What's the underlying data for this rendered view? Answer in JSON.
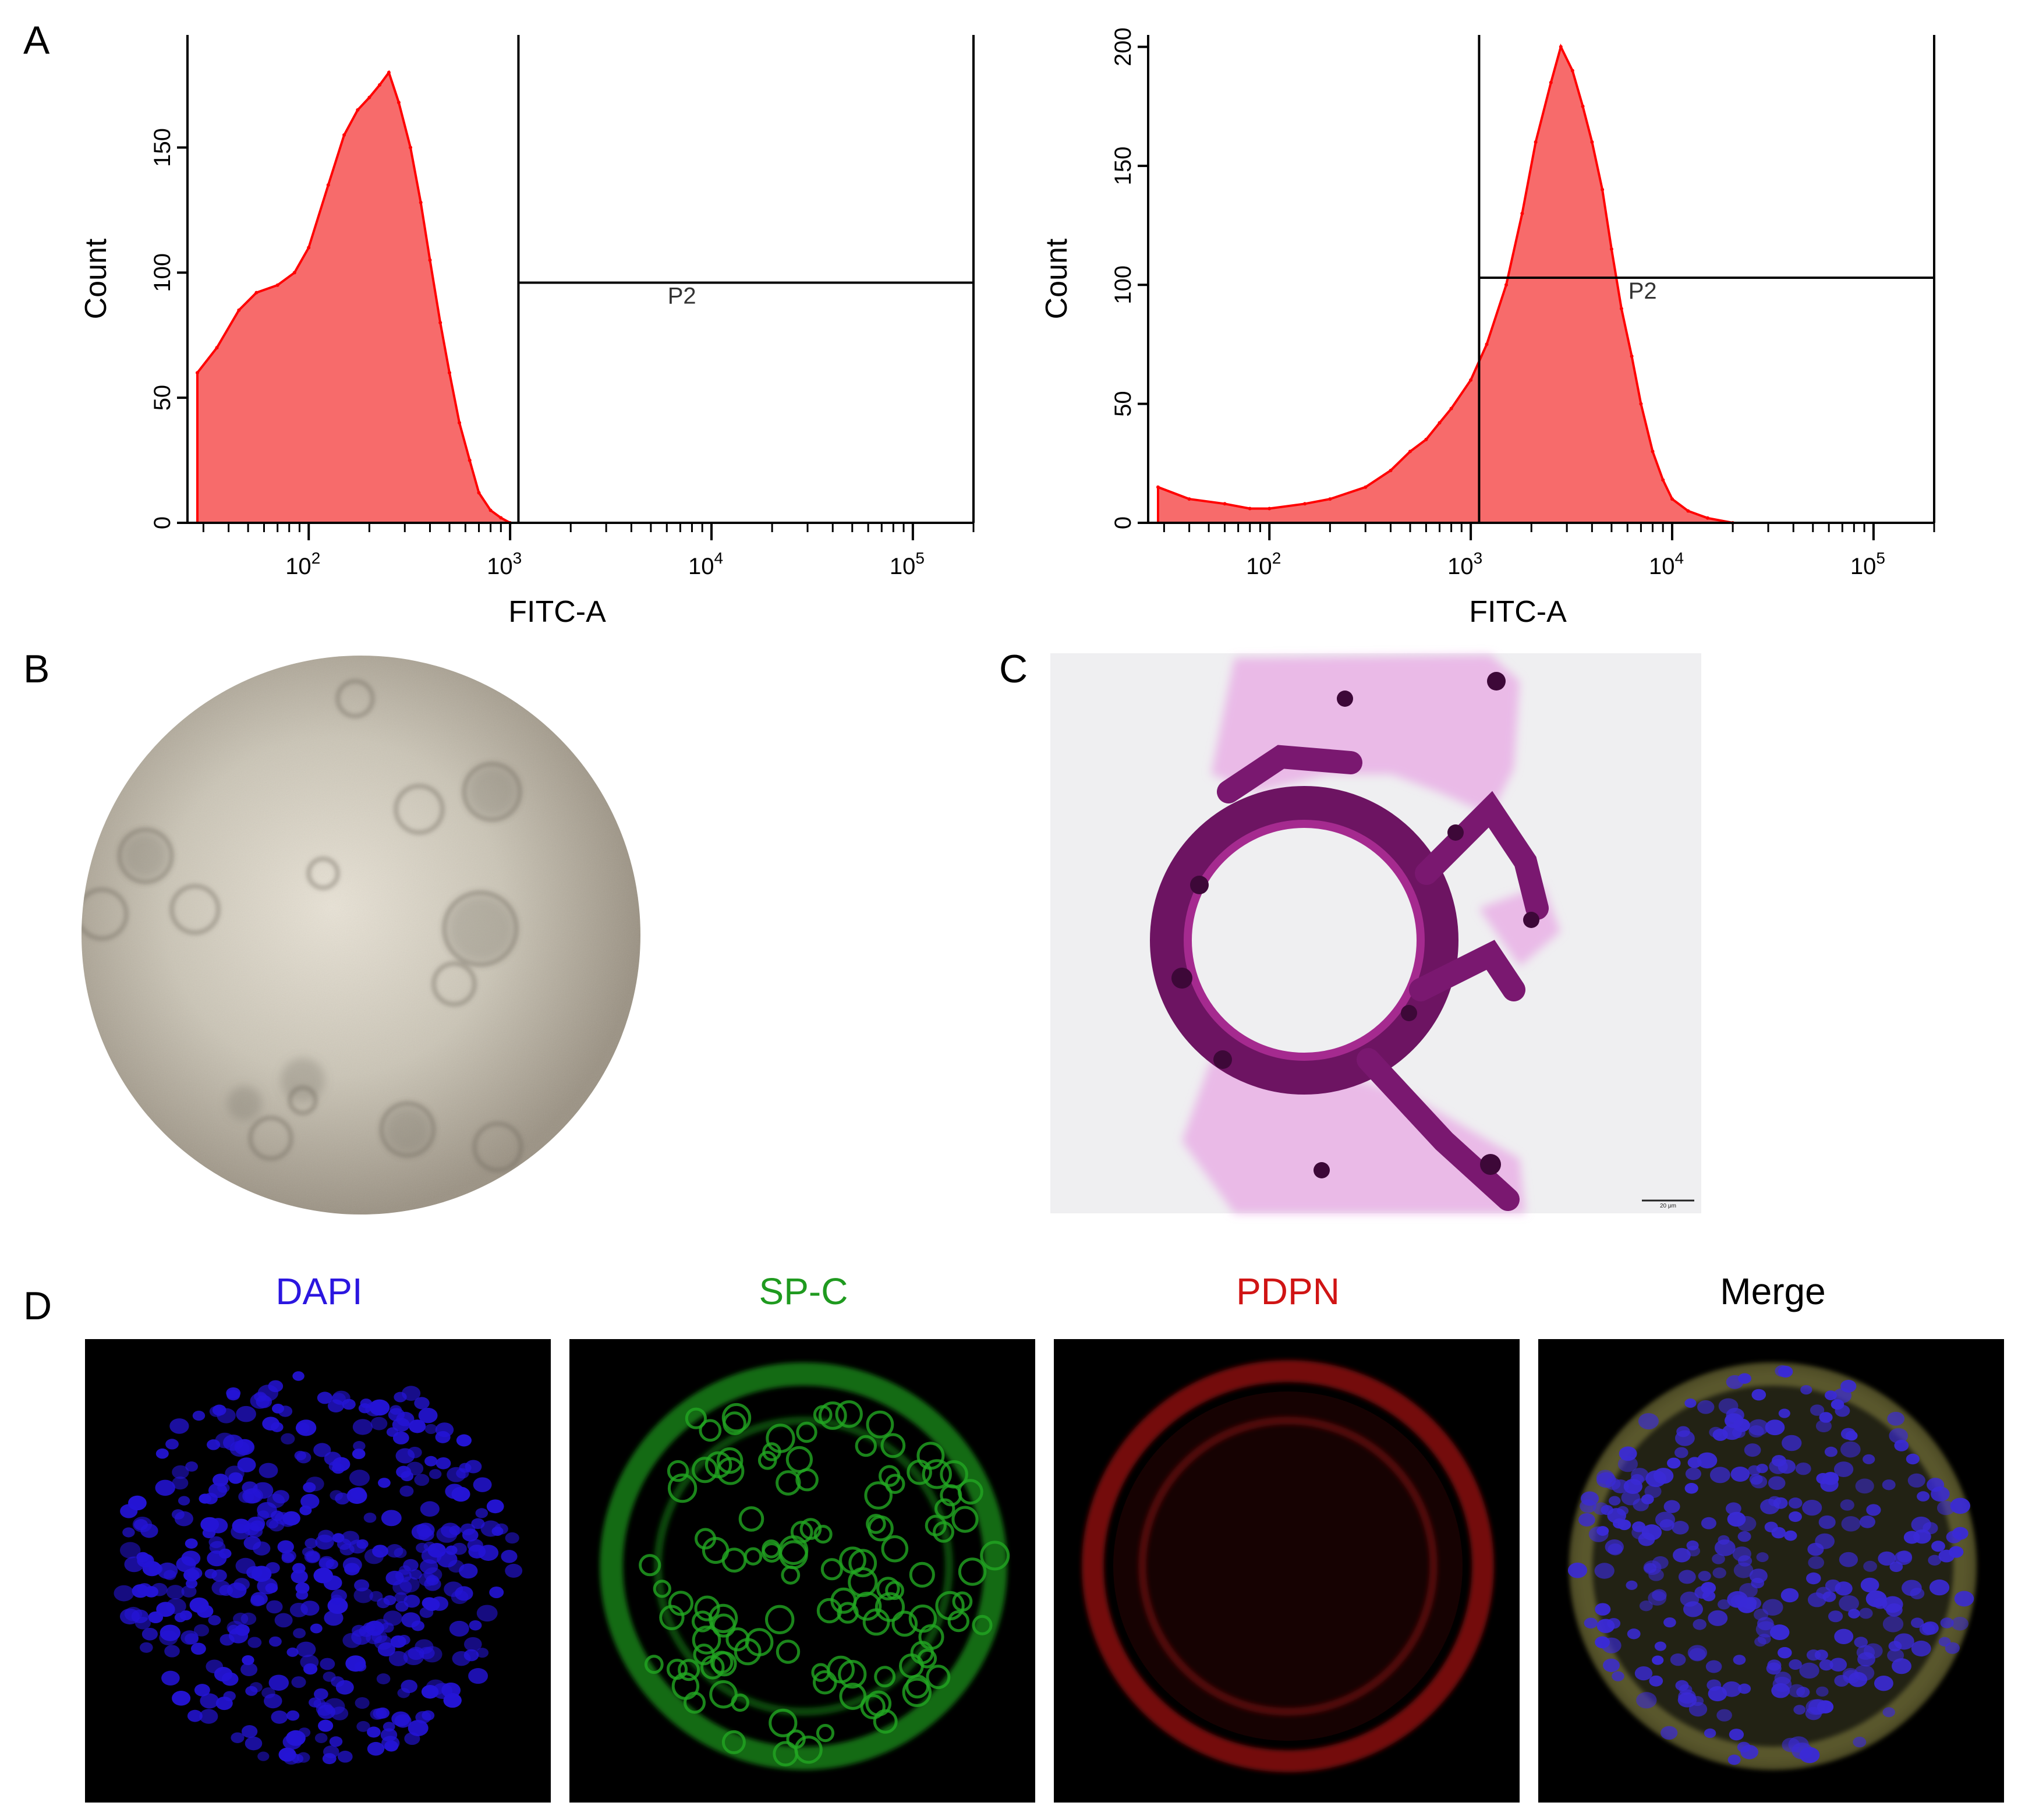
{
  "panels": {
    "A": "A",
    "B": "B",
    "C": "C",
    "D": "D"
  },
  "chart_data": [
    {
      "type": "area",
      "xlabel": "FITC-A",
      "ylabel": "Count",
      "x_scale": "log",
      "xlim": [
        25,
        200000
      ],
      "ylim": [
        0,
        195
      ],
      "yticks": [
        0,
        50,
        100,
        150
      ],
      "xticks": [
        100,
        1000,
        10000,
        100000
      ],
      "xtick_labels": [
        {
          "base": "10",
          "exp": "2"
        },
        {
          "base": "10",
          "exp": "3"
        },
        {
          "base": "10",
          "exp": "4"
        },
        {
          "base": "10",
          "exp": "5"
        }
      ],
      "gate": {
        "label": "P2",
        "x_start": 1100,
        "x_end": 200000,
        "y": 96
      },
      "fill_color": "#f76b6b",
      "line_color": "#ff0000",
      "series": [
        {
          "x": [
            28,
            35,
            45,
            55,
            70,
            85,
            100,
            125,
            150,
            175,
            200,
            225,
            250,
            280,
            320,
            360,
            400,
            450,
            500,
            560,
            630,
            700,
            800,
            900,
            1000
          ],
          "values": [
            60,
            70,
            85,
            92,
            95,
            100,
            110,
            135,
            155,
            165,
            170,
            175,
            180,
            168,
            150,
            128,
            105,
            80,
            60,
            40,
            25,
            12,
            5,
            2,
            0
          ]
        }
      ]
    },
    {
      "type": "area",
      "xlabel": "FITC-A",
      "ylabel": "Count",
      "x_scale": "log",
      "xlim": [
        25,
        200000
      ],
      "ylim": [
        0,
        205
      ],
      "yticks": [
        0,
        50,
        100,
        150,
        200
      ],
      "xticks": [
        100,
        1000,
        10000,
        100000
      ],
      "xtick_labels": [
        {
          "base": "10",
          "exp": "2"
        },
        {
          "base": "10",
          "exp": "3"
        },
        {
          "base": "10",
          "exp": "4"
        },
        {
          "base": "10",
          "exp": "5"
        }
      ],
      "gate": {
        "label": "P2",
        "x_start": 1100,
        "x_end": 200000,
        "y": 103
      },
      "fill_color": "#f76b6b",
      "line_color": "#ff0000",
      "series": [
        {
          "x": [
            28,
            40,
            60,
            80,
            100,
            150,
            200,
            300,
            400,
            500,
            600,
            700,
            800,
            1000,
            1200,
            1500,
            1800,
            2100,
            2500,
            2800,
            3200,
            3600,
            4000,
            4500,
            5000,
            5600,
            6300,
            7000,
            8000,
            9000,
            10000,
            12000,
            15000,
            20000
          ],
          "values": [
            15,
            10,
            8,
            6,
            6,
            8,
            10,
            15,
            22,
            30,
            35,
            42,
            48,
            60,
            75,
            100,
            130,
            160,
            185,
            200,
            190,
            175,
            160,
            140,
            115,
            90,
            70,
            50,
            30,
            18,
            10,
            5,
            2,
            0
          ]
        }
      ]
    }
  ],
  "panel_C": {
    "scale_bar": "20 μm"
  },
  "panel_D": {
    "labels": [
      {
        "text": "DAPI",
        "color": "#2b16e0"
      },
      {
        "text": "SP-C",
        "color": "#1f9a1f"
      },
      {
        "text": "PDPN",
        "color": "#d01414"
      },
      {
        "text": "Merge",
        "color": "#000000"
      }
    ]
  }
}
